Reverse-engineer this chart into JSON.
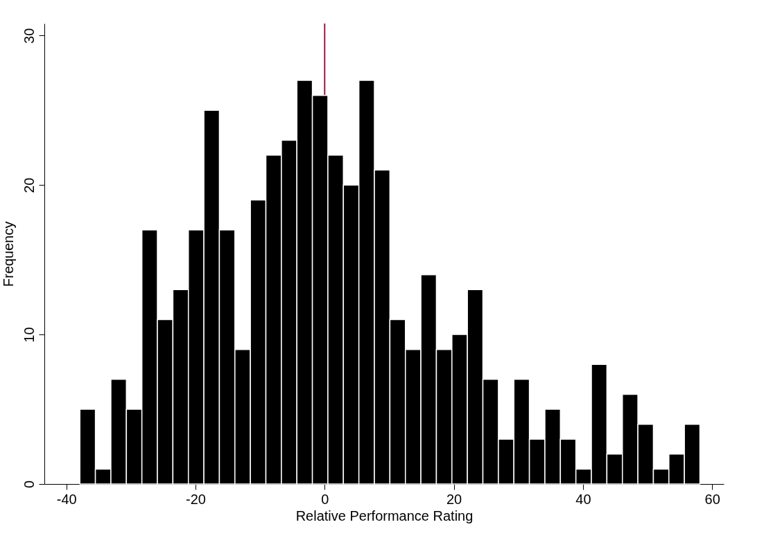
{
  "chart_data": {
    "type": "histogram",
    "xlabel": "Relative Performance Rating",
    "ylabel": "Frequency",
    "bins": [
      -37.9,
      -35.5,
      -33.1,
      -30.7,
      -28.3,
      -25.9,
      -23.5,
      -21.1,
      -18.7,
      -16.3,
      -13.9,
      -11.5,
      -9.1,
      -6.7,
      -4.3,
      -1.9,
      0.5,
      2.9,
      5.3,
      7.7,
      10.1,
      12.5,
      14.9,
      17.3,
      19.7,
      22.1,
      24.5,
      26.9,
      29.3,
      31.7,
      34.1,
      36.5,
      38.9,
      41.3,
      43.7,
      46.1,
      48.5,
      50.9,
      53.3,
      55.7,
      58.1
    ],
    "values": [
      5,
      1,
      7,
      5,
      17,
      11,
      13,
      17,
      25,
      17,
      9,
      19,
      22,
      23,
      27,
      26,
      22,
      20,
      27,
      21,
      11,
      9,
      14,
      9,
      10,
      13,
      7,
      3,
      7,
      3,
      5,
      3,
      1,
      8,
      2,
      6,
      4,
      1,
      2,
      4
    ],
    "color": "#000000",
    "xlim": [
      -43.4,
      61.8
    ],
    "ylim": [
      0,
      30.8
    ],
    "xticks": [
      -40,
      -20,
      0,
      20,
      40,
      60
    ],
    "yticks": [
      0,
      10,
      20,
      30
    ],
    "grid": false,
    "ref_lines": [
      {
        "axis": "x",
        "value": 0,
        "color": "#a0153e"
      }
    ]
  }
}
